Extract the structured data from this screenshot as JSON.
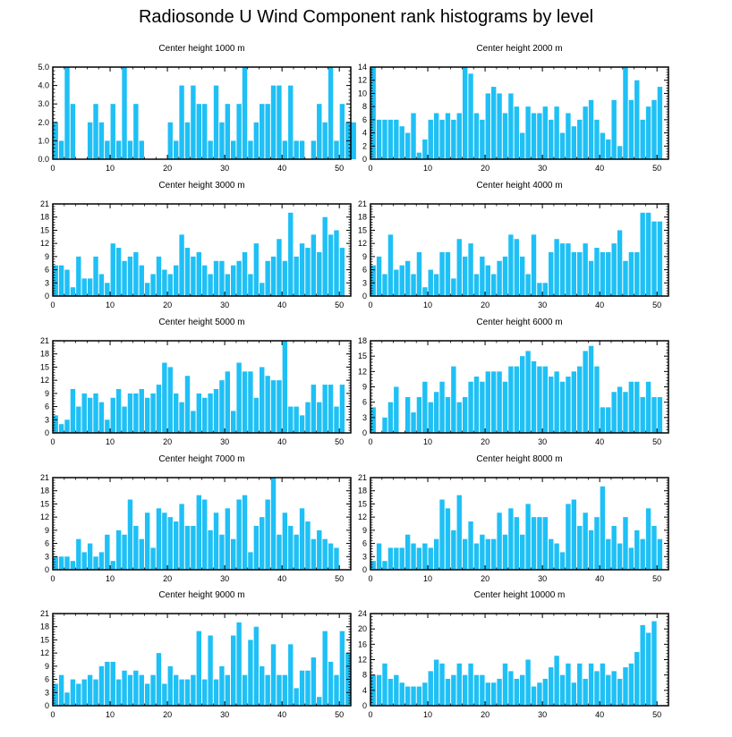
{
  "title": "Radiosonde U Wind Component rank histograms by level",
  "colors": {
    "bar": "#1ec0f5",
    "axis": "#000000",
    "background": "#ffffff"
  },
  "chart_data": [
    {
      "type": "bar",
      "title": "Center height 1000 m",
      "xlim": [
        0,
        52
      ],
      "xticks": [
        0,
        10,
        20,
        30,
        40,
        50
      ],
      "ylim": [
        0,
        5
      ],
      "yticks": [
        0,
        1,
        2,
        3,
        4,
        5
      ],
      "ytick_labels": [
        "0.0",
        "1.0",
        "2.0",
        "3.0",
        "4.0",
        "5.0"
      ],
      "values": [
        2,
        1,
        5,
        3,
        0,
        0,
        2,
        3,
        2,
        1,
        3,
        1,
        5,
        1,
        3,
        1,
        0,
        0,
        0,
        0,
        2,
        1,
        4,
        2,
        4,
        3,
        3,
        1,
        4,
        2,
        3,
        1,
        3,
        5,
        1,
        2,
        3,
        3,
        4,
        4,
        1,
        4,
        1,
        1,
        0,
        1,
        3,
        2,
        5,
        1,
        3,
        2,
        2
      ]
    },
    {
      "type": "bar",
      "title": "Center height 2000 m",
      "xlim": [
        0,
        52
      ],
      "xticks": [
        0,
        10,
        20,
        30,
        40,
        50
      ],
      "ylim": [
        0,
        14
      ],
      "yticks": [
        0,
        2,
        4,
        6,
        8,
        10,
        12,
        14
      ],
      "ytick_labels": [
        "0",
        "2",
        "4",
        "6",
        "8",
        "10",
        "12",
        "14"
      ],
      "values": [
        14,
        6,
        6,
        6,
        6,
        5,
        4,
        7,
        1,
        3,
        6,
        7,
        6,
        7,
        6,
        7,
        14,
        13,
        7,
        6,
        10,
        11,
        10,
        7,
        10,
        8,
        4,
        8,
        7,
        7,
        8,
        6,
        8,
        4,
        7,
        5,
        6,
        8,
        9,
        6,
        4,
        3,
        9,
        2,
        14,
        9,
        12,
        6,
        8,
        9,
        11,
        0,
        0
      ]
    },
    {
      "type": "bar",
      "title": "Center height 3000 m",
      "xlim": [
        0,
        52
      ],
      "xticks": [
        0,
        10,
        20,
        30,
        40,
        50
      ],
      "ylim": [
        0,
        21
      ],
      "yticks": [
        0,
        3,
        6,
        9,
        12,
        15,
        18,
        21
      ],
      "ytick_labels": [
        "0",
        "3",
        "6",
        "9",
        "12",
        "15",
        "18",
        "21"
      ],
      "values": [
        7,
        7,
        6,
        2,
        9,
        4,
        4,
        9,
        5,
        3,
        12,
        11,
        8,
        9,
        10,
        7,
        3,
        5,
        9,
        6,
        5,
        7,
        14,
        11,
        9,
        10,
        7,
        5,
        8,
        8,
        5,
        7,
        8,
        10,
        5,
        12,
        3,
        8,
        9,
        13,
        8,
        19,
        9,
        12,
        11,
        14,
        10,
        18,
        14,
        15,
        11,
        0,
        0
      ]
    },
    {
      "type": "bar",
      "title": "Center height 4000 m",
      "xlim": [
        0,
        52
      ],
      "xticks": [
        0,
        10,
        20,
        30,
        40,
        50
      ],
      "ylim": [
        0,
        21
      ],
      "yticks": [
        0,
        3,
        6,
        9,
        12,
        15,
        18,
        21
      ],
      "ytick_labels": [
        "0",
        "3",
        "6",
        "9",
        "12",
        "15",
        "18",
        "21"
      ],
      "values": [
        7,
        9,
        5,
        14,
        6,
        7,
        8,
        5,
        10,
        2,
        6,
        5,
        10,
        10,
        4,
        13,
        9,
        12,
        5,
        9,
        7,
        5,
        8,
        9,
        14,
        13,
        9,
        5,
        14,
        3,
        3,
        10,
        13,
        12,
        12,
        10,
        10,
        12,
        8,
        11,
        10,
        10,
        12,
        15,
        8,
        10,
        10,
        19,
        19,
        17,
        17,
        0,
        0
      ]
    },
    {
      "type": "bar",
      "title": "Center height 5000 m",
      "xlim": [
        0,
        52
      ],
      "xticks": [
        0,
        10,
        20,
        30,
        40,
        50
      ],
      "ylim": [
        0,
        21
      ],
      "yticks": [
        0,
        3,
        6,
        9,
        12,
        15,
        18,
        21
      ],
      "ytick_labels": [
        "0",
        "3",
        "6",
        "9",
        "12",
        "15",
        "18",
        "21"
      ],
      "values": [
        4,
        2,
        3,
        10,
        6,
        9,
        8,
        9,
        7,
        3,
        8,
        10,
        6,
        9,
        9,
        10,
        8,
        9,
        11,
        16,
        15,
        9,
        7,
        13,
        5,
        9,
        8,
        9,
        10,
        12,
        14,
        5,
        16,
        14,
        14,
        8,
        15,
        13,
        12,
        12,
        21,
        6,
        6,
        4,
        7,
        11,
        7,
        11,
        11,
        6,
        11,
        0,
        0
      ]
    },
    {
      "type": "bar",
      "title": "Center height 6000 m",
      "xlim": [
        0,
        52
      ],
      "xticks": [
        0,
        10,
        20,
        30,
        40,
        50
      ],
      "ylim": [
        0,
        18
      ],
      "yticks": [
        0,
        3,
        6,
        9,
        12,
        15,
        18
      ],
      "ytick_labels": [
        "0",
        "3",
        "6",
        "9",
        "12",
        "15",
        "18"
      ],
      "values": [
        5,
        0,
        3,
        6,
        9,
        0,
        7,
        4,
        7,
        10,
        6,
        8,
        10,
        7,
        13,
        6,
        7,
        10,
        11,
        10,
        12,
        12,
        12,
        10,
        13,
        13,
        15,
        16,
        14,
        13,
        13,
        11,
        12,
        10,
        11,
        12,
        13,
        16,
        17,
        13,
        5,
        5,
        8,
        9,
        8,
        10,
        10,
        7,
        10,
        7,
        7,
        0,
        0
      ]
    },
    {
      "type": "bar",
      "title": "Center height 7000 m",
      "xlim": [
        0,
        52
      ],
      "xticks": [
        0,
        10,
        20,
        30,
        40,
        50
      ],
      "ylim": [
        0,
        21
      ],
      "yticks": [
        0,
        3,
        6,
        9,
        12,
        15,
        18,
        21
      ],
      "ytick_labels": [
        "0",
        "3",
        "6",
        "9",
        "12",
        "15",
        "18",
        "21"
      ],
      "values": [
        3,
        3,
        3,
        2,
        7,
        4,
        6,
        3,
        4,
        8,
        2,
        9,
        8,
        16,
        10,
        7,
        13,
        5,
        14,
        13,
        12,
        11,
        15,
        10,
        10,
        17,
        16,
        9,
        13,
        8,
        14,
        7,
        16,
        17,
        4,
        10,
        12,
        16,
        21,
        8,
        13,
        10,
        8,
        14,
        11,
        7,
        9,
        7,
        6,
        5,
        0,
        0,
        0
      ]
    },
    {
      "type": "bar",
      "title": "Center height 8000 m",
      "xlim": [
        0,
        52
      ],
      "xticks": [
        0,
        10,
        20,
        30,
        40,
        50
      ],
      "ylim": [
        0,
        21
      ],
      "yticks": [
        0,
        3,
        6,
        9,
        12,
        15,
        18,
        21
      ],
      "ytick_labels": [
        "0",
        "3",
        "6",
        "9",
        "12",
        "15",
        "18",
        "21"
      ],
      "values": [
        2,
        6,
        2,
        5,
        5,
        5,
        8,
        6,
        5,
        6,
        5,
        7,
        16,
        14,
        9,
        17,
        7,
        11,
        6,
        8,
        7,
        7,
        13,
        8,
        14,
        12,
        8,
        15,
        12,
        12,
        12,
        7,
        6,
        4,
        15,
        16,
        10,
        13,
        9,
        12,
        19,
        7,
        10,
        6,
        12,
        5,
        9,
        7,
        14,
        10,
        7,
        0,
        0
      ]
    },
    {
      "type": "bar",
      "title": "Center height 9000 m",
      "xlim": [
        0,
        52
      ],
      "xticks": [
        0,
        10,
        20,
        30,
        40,
        50
      ],
      "ylim": [
        0,
        21
      ],
      "yticks": [
        0,
        3,
        6,
        9,
        12,
        15,
        18,
        21
      ],
      "ytick_labels": [
        "0",
        "3",
        "6",
        "9",
        "12",
        "15",
        "18",
        "21"
      ],
      "values": [
        5,
        7,
        3,
        6,
        5,
        6,
        7,
        6,
        9,
        10,
        10,
        6,
        8,
        7,
        8,
        7,
        5,
        7,
        12,
        5,
        9,
        7,
        6,
        6,
        7,
        17,
        6,
        16,
        6,
        9,
        7,
        16,
        19,
        7,
        15,
        18,
        9,
        7,
        14,
        7,
        7,
        14,
        4,
        8,
        8,
        11,
        2,
        17,
        10,
        7,
        17,
        12,
        0
      ]
    },
    {
      "type": "bar",
      "title": "Center height 10000 m",
      "xlim": [
        0,
        52
      ],
      "xticks": [
        0,
        10,
        20,
        30,
        40,
        50
      ],
      "ylim": [
        0,
        24
      ],
      "yticks": [
        0,
        4,
        8,
        12,
        16,
        20,
        24
      ],
      "ytick_labels": [
        "0",
        "4",
        "8",
        "12",
        "16",
        "20",
        "24"
      ],
      "values": [
        8,
        8,
        11,
        7,
        8,
        6,
        5,
        5,
        5,
        6,
        9,
        12,
        11,
        7,
        8,
        11,
        8,
        11,
        8,
        8,
        6,
        6,
        7,
        11,
        9,
        7,
        8,
        12,
        5,
        6,
        7,
        10,
        13,
        8,
        11,
        6,
        11,
        7,
        11,
        9,
        11,
        8,
        9,
        7,
        10,
        11,
        14,
        21,
        19,
        22,
        0,
        0,
        0
      ]
    }
  ]
}
